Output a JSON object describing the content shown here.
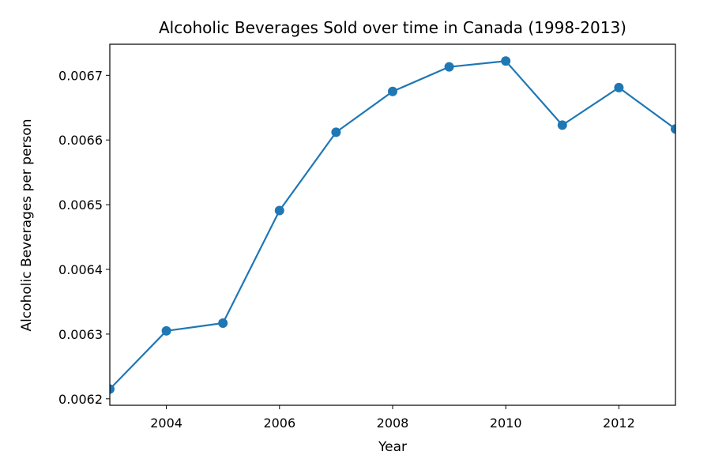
{
  "chart_data": {
    "type": "line",
    "title": "Alcoholic Beverages Sold over time in Canada (1998-2013)",
    "xlabel": "Year",
    "ylabel": "Alcoholic Beverages per person",
    "xlim": [
      2003,
      2013
    ],
    "ylim": [
      0.00619,
      0.006748
    ],
    "xticks": [
      2004,
      2006,
      2008,
      2010,
      2012
    ],
    "xtick_labels": [
      "2004",
      "2006",
      "2008",
      "2010",
      "2012"
    ],
    "yticks": [
      0.0062,
      0.0063,
      0.0064,
      0.0065,
      0.0066,
      0.0067
    ],
    "ytick_labels": [
      "0.0062",
      "0.0063",
      "0.0064",
      "0.0065",
      "0.0066",
      "0.0067"
    ],
    "grid": false,
    "series": [
      {
        "color": "#1f77b4",
        "marker": "circle",
        "x": [
          2003,
          2004,
          2005,
          2006,
          2007,
          2008,
          2009,
          2010,
          2011,
          2012,
          2013
        ],
        "y": [
          0.006215,
          0.006305,
          0.006317,
          0.006491,
          0.006612,
          0.006675,
          0.006713,
          0.006722,
          0.006623,
          0.006681,
          0.006617
        ]
      }
    ]
  }
}
